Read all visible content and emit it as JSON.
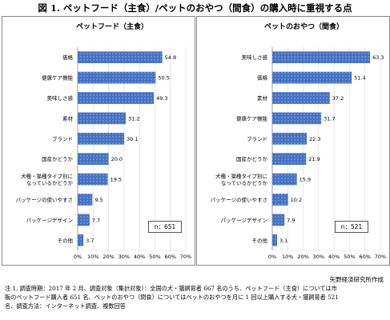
{
  "figure_title": "図 1. ペットフード（主食）/ペットのおやつ（間食）の購入時に重視する点",
  "credit": "矢野経済研究所作成",
  "notes": [
    "注 1. 調査時期：2017 年 2 月、調査対象（集計対象）：全国の犬・猫飼育者 667 名のうち、ペットフード（主食）については市",
    "販のペットフード購入者 651 名、ペットのおやつ（間食）についてはペットのおやつを月に 1 回以上購入する犬・猫飼育者 521",
    "名、調査方法：インターネット調査、複数回答"
  ],
  "colors": {
    "bar": "#4472c4",
    "bar_dot": "#ffffff",
    "grid": "#d9d9d9",
    "axis": "#888888"
  },
  "chart_data": [
    {
      "type": "bar",
      "orientation": "horizontal",
      "title": "ペットフード（主食）",
      "n_label": "n：651",
      "categories": [
        [
          "価格"
        ],
        [
          "健康ケア機能"
        ],
        [
          "美味しさ感"
        ],
        [
          "素材"
        ],
        [
          "ブランド"
        ],
        [
          "国産かどうか"
        ],
        [
          "犬種・猫種タイプ別に",
          "なっているかどうか"
        ],
        [
          "パッケージの使いやすさ"
        ],
        [
          "パッケージデザイン"
        ],
        [
          "その他"
        ]
      ],
      "values": [
        54.8,
        50.5,
        49.3,
        31.2,
        30.1,
        20.0,
        19.5,
        9.5,
        7.7,
        3.7
      ],
      "value_labels": [
        "54.8",
        "50.5",
        "49.3",
        "31.2",
        "30.1",
        "20.0",
        "19.5",
        "9.5",
        "7.7",
        "3.7"
      ],
      "xlim": [
        0,
        70
      ],
      "ticks": [
        "0%",
        "10%",
        "20%",
        "30%",
        "40%",
        "50%",
        "60%",
        "70%"
      ],
      "grid": true
    },
    {
      "type": "bar",
      "orientation": "horizontal",
      "title": "ペットのおやつ（間食）",
      "n_label": "n：521",
      "categories": [
        [
          "美味しさ感"
        ],
        [
          "価格"
        ],
        [
          "素材"
        ],
        [
          "健康ケア機能"
        ],
        [
          "ブランド"
        ],
        [
          "国産かどうか"
        ],
        [
          "犬種・猫種タイプ別に",
          "なっているかどうか"
        ],
        [
          "パッケージの使いやすさ"
        ],
        [
          "パッケージデザイン"
        ],
        [
          "その他"
        ]
      ],
      "values": [
        63.3,
        51.4,
        37.2,
        31.7,
        22.3,
        21.9,
        15.9,
        10.2,
        7.9,
        3.1
      ],
      "value_labels": [
        "63.3",
        "51.4",
        "37.2",
        "31.7",
        "22.3",
        "21.9",
        "15.9",
        "10.2",
        "7.9",
        "3.1"
      ],
      "xlim": [
        0,
        70
      ],
      "ticks": [
        "0%",
        "10%",
        "20%",
        "30%",
        "40%",
        "50%",
        "60%",
        "70%"
      ],
      "grid": true
    }
  ]
}
